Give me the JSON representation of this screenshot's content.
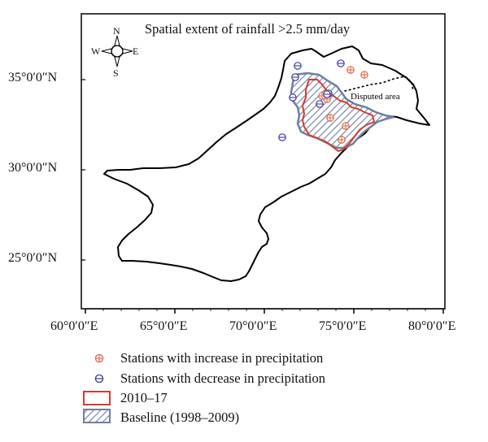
{
  "title": "Spatial extent of rainfall >2.5 mm/day",
  "compass": {
    "n": "N",
    "s": "S",
    "e": "E",
    "w": "W"
  },
  "lat_labels": [
    "35°0′0″N",
    "30°0′0″N",
    "25°0′0″N"
  ],
  "lon_labels": [
    "60°0′0″E",
    "65°0′0″E",
    "70°0′0″E",
    "75°0′0″E",
    "80°0′0″E"
  ],
  "disputed_label": "Disputed area",
  "legend": {
    "increase": "Stations with increase in precipitation",
    "decrease": "Stations with decrease in precipitation",
    "recent": "2010–17",
    "baseline": "Baseline (1998–2009)"
  },
  "colors": {
    "increase": "#e06a4a",
    "decrease": "#3a3aa8",
    "recent_outline": "#d63a2a",
    "baseline_hatch": "#6d7fa3"
  }
}
